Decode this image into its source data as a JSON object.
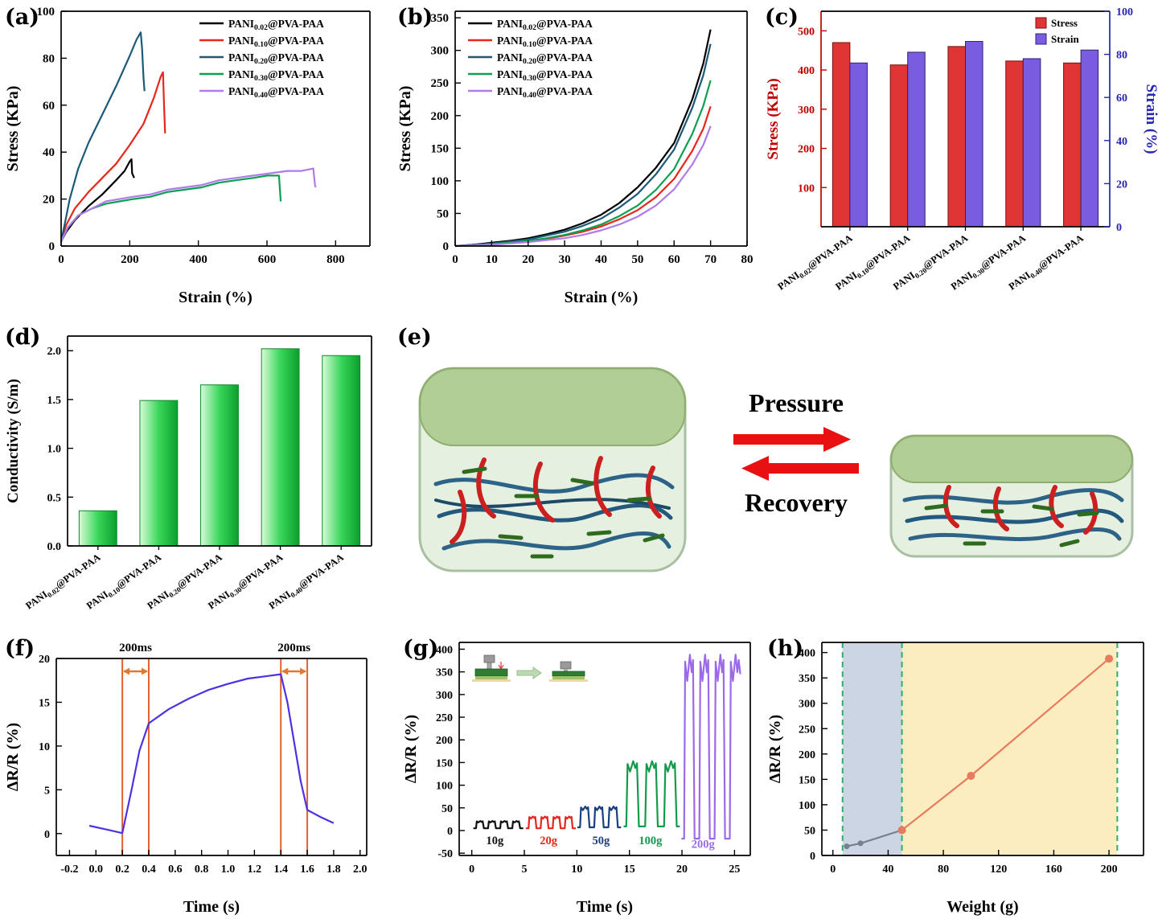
{
  "panels": [
    {
      "id": "a",
      "letter": "(a)"
    },
    {
      "id": "b",
      "letter": "(b)"
    },
    {
      "id": "c",
      "letter": "(c)"
    },
    {
      "id": "d",
      "letter": "(d)"
    },
    {
      "id": "e",
      "letter": "(e)"
    },
    {
      "id": "f",
      "letter": "(f)"
    },
    {
      "id": "g",
      "letter": "(g)"
    },
    {
      "id": "h",
      "letter": "(h)"
    }
  ],
  "schematic": {
    "pressure_label": "Pressure",
    "recovery_label": "Recovery"
  },
  "chart_data": [
    {
      "id": "a",
      "kind": "line",
      "title": "",
      "xlabel": "Strain (%)",
      "ylabel": "Stress (KPa)",
      "xlim": [
        0,
        900
      ],
      "ylim": [
        0,
        100
      ],
      "xticks": [
        0,
        200,
        400,
        600,
        800
      ],
      "yticks": [
        0,
        20,
        40,
        60,
        80,
        100
      ],
      "legend_pos": "tr",
      "series": [
        {
          "name": "PANI0.02@PVA-PAA",
          "color": "#000000",
          "points": [
            [
              0,
              2
            ],
            [
              15,
              6
            ],
            [
              40,
              11
            ],
            [
              80,
              17
            ],
            [
              120,
              22
            ],
            [
              160,
              28
            ],
            [
              185,
              32
            ],
            [
              200,
              36
            ],
            [
              205,
              37
            ],
            [
              207,
              31
            ],
            [
              213,
              29
            ]
          ]
        },
        {
          "name": "PANI0.10@PVA-PAA",
          "color": "#e8261c",
          "points": [
            [
              0,
              2
            ],
            [
              15,
              9
            ],
            [
              40,
              16
            ],
            [
              80,
              23
            ],
            [
              120,
              29
            ],
            [
              160,
              35
            ],
            [
              200,
              43
            ],
            [
              240,
              52
            ],
            [
              270,
              63
            ],
            [
              290,
              72
            ],
            [
              297,
              74
            ],
            [
              300,
              60
            ],
            [
              303,
              48
            ]
          ]
        },
        {
          "name": "PANI0.20@PVA-PAA",
          "color": "#1b5a78",
          "points": [
            [
              0,
              2
            ],
            [
              10,
              9
            ],
            [
              25,
              20
            ],
            [
              50,
              33
            ],
            [
              80,
              44
            ],
            [
              120,
              56
            ],
            [
              160,
              68
            ],
            [
              200,
              81
            ],
            [
              220,
              88
            ],
            [
              232,
              91
            ],
            [
              236,
              84
            ],
            [
              240,
              72
            ],
            [
              243,
              66
            ]
          ]
        },
        {
          "name": "PANI0.30@PVA-PAA",
          "color": "#0ba04f",
          "points": [
            [
              0,
              2
            ],
            [
              20,
              8
            ],
            [
              50,
              13
            ],
            [
              90,
              16
            ],
            [
              130,
              18
            ],
            [
              170,
              19
            ],
            [
              210,
              20
            ],
            [
              260,
              21
            ],
            [
              310,
              23
            ],
            [
              360,
              24
            ],
            [
              410,
              25
            ],
            [
              460,
              27
            ],
            [
              510,
              28
            ],
            [
              560,
              29
            ],
            [
              600,
              30
            ],
            [
              625,
              30
            ],
            [
              635,
              30
            ],
            [
              640,
              19
            ]
          ]
        },
        {
          "name": "PANI0.40@PVA-PAA",
          "color": "#b07ae8",
          "points": [
            [
              0,
              2
            ],
            [
              20,
              8
            ],
            [
              50,
              13
            ],
            [
              90,
              16
            ],
            [
              130,
              19
            ],
            [
              170,
              20
            ],
            [
              210,
              21
            ],
            [
              260,
              22
            ],
            [
              310,
              24
            ],
            [
              360,
              25
            ],
            [
              410,
              26
            ],
            [
              460,
              28
            ],
            [
              510,
              29
            ],
            [
              560,
              30
            ],
            [
              610,
              31
            ],
            [
              660,
              32
            ],
            [
              700,
              32
            ],
            [
              735,
              33
            ],
            [
              740,
              26
            ],
            [
              742,
              25
            ]
          ]
        }
      ]
    },
    {
      "id": "b",
      "kind": "line",
      "title": "",
      "xlabel": "Strain (%)",
      "ylabel": "Stress (KPa)",
      "xlim": [
        0,
        80
      ],
      "ylim": [
        0,
        360
      ],
      "xticks": [
        0,
        10,
        20,
        30,
        40,
        50,
        60,
        70,
        80
      ],
      "yticks": [
        0,
        50,
        100,
        150,
        200,
        250,
        300,
        350
      ],
      "legend_pos": "tl",
      "series": [
        {
          "name": "PANI0.02@PVA-PAA",
          "color": "#000000",
          "points": [
            [
              0,
              0
            ],
            [
              5,
              2
            ],
            [
              10,
              5
            ],
            [
              15,
              8
            ],
            [
              20,
              12
            ],
            [
              25,
              18
            ],
            [
              30,
              25
            ],
            [
              35,
              35
            ],
            [
              40,
              48
            ],
            [
              45,
              66
            ],
            [
              50,
              90
            ],
            [
              55,
              120
            ],
            [
              60,
              158
            ],
            [
              65,
              225
            ],
            [
              68,
              280
            ],
            [
              70,
              332
            ]
          ]
        },
        {
          "name": "PANI0.10@PVA-PAA",
          "color": "#e8261c",
          "points": [
            [
              0,
              0
            ],
            [
              5,
              1
            ],
            [
              10,
              3
            ],
            [
              15,
              5
            ],
            [
              20,
              8
            ],
            [
              25,
              11
            ],
            [
              30,
              16
            ],
            [
              35,
              22
            ],
            [
              40,
              30
            ],
            [
              45,
              41
            ],
            [
              50,
              55
            ],
            [
              55,
              75
            ],
            [
              60,
              103
            ],
            [
              65,
              146
            ],
            [
              68,
              180
            ],
            [
              70,
              214
            ]
          ]
        },
        {
          "name": "PANI0.20@PVA-PAA",
          "color": "#1b5a78",
          "points": [
            [
              0,
              0
            ],
            [
              5,
              2
            ],
            [
              10,
              4
            ],
            [
              15,
              7
            ],
            [
              20,
              10
            ],
            [
              25,
              16
            ],
            [
              30,
              22
            ],
            [
              35,
              31
            ],
            [
              40,
              42
            ],
            [
              45,
              59
            ],
            [
              50,
              80
            ],
            [
              55,
              110
            ],
            [
              60,
              148
            ],
            [
              65,
              212
            ],
            [
              68,
              262
            ],
            [
              70,
              310
            ]
          ]
        },
        {
          "name": "PANI0.30@PVA-PAA",
          "color": "#0ba04f",
          "points": [
            [
              0,
              0
            ],
            [
              5,
              1
            ],
            [
              10,
              3
            ],
            [
              15,
              5
            ],
            [
              20,
              8
            ],
            [
              25,
              12
            ],
            [
              30,
              17
            ],
            [
              35,
              24
            ],
            [
              40,
              33
            ],
            [
              45,
              46
            ],
            [
              50,
              62
            ],
            [
              55,
              86
            ],
            [
              60,
              118
            ],
            [
              65,
              172
            ],
            [
              68,
              215
            ],
            [
              70,
              254
            ]
          ]
        },
        {
          "name": "PANI0.40@PVA-PAA",
          "color": "#b07ae8",
          "points": [
            [
              0,
              0
            ],
            [
              5,
              1
            ],
            [
              10,
              2
            ],
            [
              15,
              4
            ],
            [
              20,
              6
            ],
            [
              25,
              9
            ],
            [
              30,
              12
            ],
            [
              35,
              17
            ],
            [
              40,
              24
            ],
            [
              45,
              33
            ],
            [
              50,
              45
            ],
            [
              55,
              62
            ],
            [
              60,
              87
            ],
            [
              65,
              125
            ],
            [
              68,
              155
            ],
            [
              70,
              184
            ]
          ]
        }
      ]
    },
    {
      "id": "c",
      "kind": "dualbars",
      "title": "",
      "categories": [
        "PANI0.02@PVA-PAA",
        "PANI0.10@PVA-PAA",
        "PANI0.20@PVA-PAA",
        "PANI0.30@PVA-PAA",
        "PANI0.40@PVA-PAA"
      ],
      "left": {
        "label": "Stress",
        "axis_label": "Stress (KPa)",
        "color": "#e03535",
        "edge": "#7a1010",
        "axis_color": "#c00000",
        "lim": [
          0,
          550
        ],
        "ticks": [
          100,
          200,
          300,
          400,
          500
        ],
        "values": [
          470,
          413,
          460,
          423,
          418
        ]
      },
      "right": {
        "label": "Strain",
        "axis_label": "Strain (%)",
        "color": "#7a5ce0",
        "edge": "#2e2470",
        "axis_color": "#2626b0",
        "lim": [
          0,
          100
        ],
        "ticks": [
          0,
          20,
          40,
          60,
          80,
          100
        ],
        "values": [
          76,
          81,
          86,
          78,
          82
        ]
      }
    },
    {
      "id": "d",
      "kind": "bars",
      "title": "",
      "ylabel": "Conductivity (S/m)",
      "categories": [
        "PANI0.02@PVA-PAA",
        "PANI0.10@PVA-PAA",
        "PANI0.20@PVA-PAA",
        "PANI0.30@PVA-PAA",
        "PANI0.40@PVA-PAA"
      ],
      "values": [
        0.36,
        1.49,
        1.65,
        2.02,
        1.95
      ],
      "ylim": [
        0,
        2.15
      ],
      "yticks": [
        0,
        0.5,
        1,
        1.5,
        2
      ],
      "ydec": 1,
      "bar_edge": "#0e8a2a"
    },
    {
      "id": "f",
      "kind": "line",
      "title": "",
      "xlabel": "Time (s)",
      "ylabel": "ΔR/R (%)",
      "xlim": [
        -0.3,
        2.05
      ],
      "ylim": [
        -2.5,
        20
      ],
      "xticks": [
        -0.2,
        0,
        0.2,
        0.4,
        0.6,
        0.8,
        1,
        1.2,
        1.4,
        1.6,
        1.8,
        2
      ],
      "xdec": 1,
      "yticks": [
        0,
        5,
        10,
        15,
        20
      ],
      "series": [
        {
          "name": "response",
          "color": "#5030e0",
          "points": [
            [
              -0.05,
              0.9
            ],
            [
              0.1,
              0.4
            ],
            [
              0.2,
              0.05
            ],
            [
              0.27,
              5
            ],
            [
              0.33,
              9.5
            ],
            [
              0.4,
              12.6
            ],
            [
              0.55,
              14.2
            ],
            [
              0.7,
              15.4
            ],
            [
              0.85,
              16.4
            ],
            [
              1,
              17.1
            ],
            [
              1.15,
              17.7
            ],
            [
              1.3,
              18
            ],
            [
              1.4,
              18.2
            ],
            [
              1.45,
              15
            ],
            [
              1.55,
              6
            ],
            [
              1.6,
              2.7
            ],
            [
              1.7,
              1.9
            ],
            [
              1.8,
              1.2
            ]
          ]
        }
      ],
      "vlines": {
        "color": "#e0622e",
        "xs": [
          0.2,
          0.4,
          1.4,
          1.6
        ]
      },
      "arrows": [
        {
          "x1": 0.2,
          "x2": 0.4,
          "label": "200ms"
        },
        {
          "x1": 1.4,
          "x2": 1.6,
          "label": "200ms"
        }
      ],
      "arrow_color": "#e07830"
    },
    {
      "id": "g",
      "kind": "pulses",
      "title": "",
      "xlabel": "Time (s)",
      "ylabel": "ΔR/R (%)",
      "xlim": [
        -1.2,
        26.5
      ],
      "ylim": [
        -55,
        415
      ],
      "xticks": [
        0,
        5,
        10,
        15,
        20,
        25
      ],
      "yticks": [
        -50,
        0,
        50,
        100,
        150,
        200,
        250,
        300,
        350,
        400
      ],
      "groups": [
        {
          "label": "10g",
          "color": "#111111",
          "x0": 0.4,
          "n": 4,
          "period": 1.15,
          "width": 0.75,
          "base": 5,
          "peak": 21,
          "label_x": 2.2,
          "label_y": -30
        },
        {
          "label": "20g",
          "color": "#e8261c",
          "x0": 5.4,
          "n": 4,
          "period": 1.15,
          "width": 0.75,
          "base": 5,
          "peak": 31,
          "label_x": 7.3,
          "label_y": -30
        },
        {
          "label": "50g",
          "color": "#1b3f7e",
          "x0": 10.3,
          "n": 3,
          "period": 1.35,
          "width": 0.9,
          "base": 7,
          "peak": 53,
          "label_x": 12.3,
          "label_y": -30
        },
        {
          "label": "100g",
          "color": "#159a4c",
          "x0": 14.7,
          "n": 3,
          "period": 1.8,
          "width": 1.2,
          "base": 9,
          "peak": 153,
          "label_x": 17,
          "label_y": -30
        },
        {
          "label": "200g",
          "color": "#9c6ae8",
          "x0": 20.2,
          "n": 4,
          "period": 1.45,
          "width": 1.0,
          "base": -18,
          "peak": 388,
          "label_x": 22,
          "label_y": -38,
          "end_high": 345
        }
      ]
    },
    {
      "id": "h",
      "kind": "scatterline",
      "title": "",
      "xlabel": "Weight (g)",
      "ylabel": "ΔR/R (%)",
      "xlim": [
        -8,
        225
      ],
      "ylim": [
        0,
        420
      ],
      "xticks": [
        0,
        40,
        80,
        120,
        160,
        200
      ],
      "yticks": [
        0,
        50,
        100,
        150,
        200,
        250,
        300,
        350,
        400
      ],
      "regions": [
        {
          "x1": 7,
          "x2": 50,
          "color": "rgba(125,150,185,0.40)"
        },
        {
          "x1": 50,
          "x2": 206,
          "color": "rgba(247,222,140,0.55)"
        }
      ],
      "vdash": {
        "color": "#2fae6a",
        "xs": [
          7,
          50,
          206
        ]
      },
      "series": [
        {
          "name": "low-weight",
          "color": "#76808e",
          "marker": 3.5,
          "points": [
            [
              10,
              18
            ],
            [
              20,
              24
            ],
            [
              50,
              50
            ]
          ]
        },
        {
          "name": "high-weight",
          "color": "#e87a5e",
          "marker": 5,
          "points": [
            [
              50,
              50
            ],
            [
              100,
              157
            ],
            [
              200,
              388
            ]
          ]
        }
      ]
    }
  ]
}
